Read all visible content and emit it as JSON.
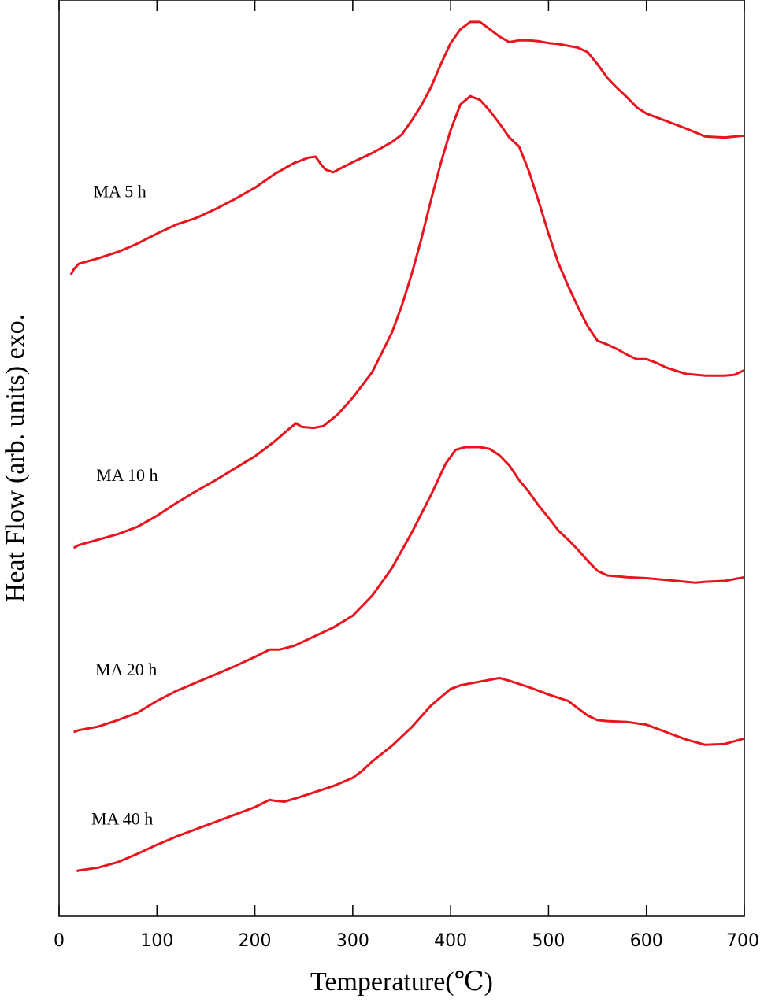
{
  "chart_data": {
    "type": "line",
    "xlabel": "Temperature(℃)",
    "ylabel": "Heat Flow (arb. units) exo.",
    "xlim": [
      0,
      700
    ],
    "ylim": [
      0,
      100
    ],
    "x_ticks": [
      0,
      100,
      200,
      300,
      400,
      500,
      600,
      700
    ],
    "y_tick_labels": false,
    "grid": false,
    "legend": "none",
    "line_color": "#e8141e",
    "series": [
      {
        "name": "MA 5 h",
        "points": [
          [
            12,
            70.0
          ],
          [
            15,
            70.6
          ],
          [
            20,
            71.2
          ],
          [
            40,
            71.8
          ],
          [
            60,
            72.5
          ],
          [
            80,
            73.4
          ],
          [
            100,
            74.5
          ],
          [
            120,
            75.5
          ],
          [
            140,
            76.2
          ],
          [
            160,
            77.2
          ],
          [
            180,
            78.3
          ],
          [
            200,
            79.5
          ],
          [
            220,
            81.0
          ],
          [
            240,
            82.2
          ],
          [
            255,
            82.8
          ],
          [
            262,
            82.9
          ],
          [
            268,
            82.0
          ],
          [
            272,
            81.5
          ],
          [
            280,
            81.2
          ],
          [
            300,
            82.3
          ],
          [
            320,
            83.3
          ],
          [
            340,
            84.5
          ],
          [
            350,
            85.3
          ],
          [
            360,
            86.8
          ],
          [
            370,
            88.5
          ],
          [
            380,
            90.5
          ],
          [
            390,
            93.0
          ],
          [
            400,
            95.3
          ],
          [
            410,
            96.8
          ],
          [
            420,
            97.6
          ],
          [
            430,
            97.6
          ],
          [
            440,
            96.8
          ],
          [
            450,
            96.0
          ],
          [
            460,
            95.4
          ],
          [
            470,
            95.6
          ],
          [
            480,
            95.6
          ],
          [
            490,
            95.5
          ],
          [
            500,
            95.3
          ],
          [
            510,
            95.2
          ],
          [
            520,
            95.0
          ],
          [
            530,
            94.8
          ],
          [
            540,
            94.3
          ],
          [
            550,
            93.0
          ],
          [
            560,
            91.5
          ],
          [
            570,
            90.4
          ],
          [
            580,
            89.4
          ],
          [
            590,
            88.3
          ],
          [
            600,
            87.6
          ],
          [
            620,
            86.8
          ],
          [
            640,
            86.0
          ],
          [
            660,
            85.1
          ],
          [
            680,
            85.0
          ],
          [
            700,
            85.2
          ]
        ]
      },
      {
        "name": "MA 10 h",
        "points": [
          [
            15,
            40.2
          ],
          [
            20,
            40.5
          ],
          [
            40,
            41.1
          ],
          [
            60,
            41.7
          ],
          [
            80,
            42.5
          ],
          [
            100,
            43.7
          ],
          [
            120,
            45.1
          ],
          [
            140,
            46.4
          ],
          [
            160,
            47.6
          ],
          [
            180,
            48.9
          ],
          [
            200,
            50.2
          ],
          [
            220,
            51.8
          ],
          [
            235,
            53.2
          ],
          [
            242,
            53.8
          ],
          [
            248,
            53.4
          ],
          [
            260,
            53.3
          ],
          [
            270,
            53.5
          ],
          [
            285,
            54.8
          ],
          [
            300,
            56.6
          ],
          [
            320,
            59.4
          ],
          [
            340,
            63.7
          ],
          [
            350,
            66.6
          ],
          [
            360,
            70.0
          ],
          [
            370,
            73.9
          ],
          [
            380,
            78.2
          ],
          [
            390,
            82.2
          ],
          [
            400,
            85.8
          ],
          [
            410,
            88.6
          ],
          [
            420,
            89.5
          ],
          [
            430,
            89.1
          ],
          [
            440,
            87.9
          ],
          [
            450,
            86.5
          ],
          [
            460,
            85.0
          ],
          [
            470,
            84.0
          ],
          [
            480,
            81.3
          ],
          [
            490,
            78.0
          ],
          [
            500,
            74.5
          ],
          [
            510,
            71.3
          ],
          [
            520,
            68.8
          ],
          [
            530,
            66.5
          ],
          [
            540,
            64.4
          ],
          [
            550,
            62.8
          ],
          [
            560,
            62.4
          ],
          [
            570,
            61.9
          ],
          [
            580,
            61.3
          ],
          [
            590,
            60.8
          ],
          [
            600,
            60.8
          ],
          [
            610,
            60.4
          ],
          [
            620,
            59.9
          ],
          [
            640,
            59.2
          ],
          [
            660,
            59.0
          ],
          [
            680,
            59.0
          ],
          [
            690,
            59.1
          ],
          [
            700,
            59.6
          ]
        ]
      },
      {
        "name": "MA 20 h",
        "points": [
          [
            15,
            20.1
          ],
          [
            20,
            20.3
          ],
          [
            40,
            20.7
          ],
          [
            60,
            21.4
          ],
          [
            80,
            22.2
          ],
          [
            100,
            23.5
          ],
          [
            120,
            24.6
          ],
          [
            140,
            25.5
          ],
          [
            160,
            26.4
          ],
          [
            180,
            27.3
          ],
          [
            200,
            28.3
          ],
          [
            215,
            29.1
          ],
          [
            225,
            29.1
          ],
          [
            240,
            29.5
          ],
          [
            260,
            30.5
          ],
          [
            280,
            31.5
          ],
          [
            300,
            32.8
          ],
          [
            320,
            35.0
          ],
          [
            340,
            38.0
          ],
          [
            360,
            41.8
          ],
          [
            380,
            46.0
          ],
          [
            395,
            49.4
          ],
          [
            405,
            50.9
          ],
          [
            415,
            51.2
          ],
          [
            430,
            51.2
          ],
          [
            440,
            51.0
          ],
          [
            450,
            50.3
          ],
          [
            460,
            49.2
          ],
          [
            470,
            47.6
          ],
          [
            480,
            46.3
          ],
          [
            490,
            44.8
          ],
          [
            500,
            43.5
          ],
          [
            510,
            42.1
          ],
          [
            520,
            41.1
          ],
          [
            530,
            40.0
          ],
          [
            540,
            38.8
          ],
          [
            550,
            37.7
          ],
          [
            560,
            37.2
          ],
          [
            580,
            37.0
          ],
          [
            600,
            36.9
          ],
          [
            620,
            36.7
          ],
          [
            640,
            36.5
          ],
          [
            650,
            36.4
          ],
          [
            660,
            36.5
          ],
          [
            680,
            36.6
          ],
          [
            700,
            37.0
          ]
        ]
      },
      {
        "name": "MA 40 h",
        "points": [
          [
            18,
            4.9
          ],
          [
            20,
            5.0
          ],
          [
            40,
            5.3
          ],
          [
            60,
            5.9
          ],
          [
            80,
            6.8
          ],
          [
            100,
            7.8
          ],
          [
            120,
            8.7
          ],
          [
            140,
            9.5
          ],
          [
            160,
            10.3
          ],
          [
            180,
            11.1
          ],
          [
            200,
            11.9
          ],
          [
            215,
            12.7
          ],
          [
            220,
            12.6
          ],
          [
            230,
            12.5
          ],
          [
            240,
            12.8
          ],
          [
            260,
            13.5
          ],
          [
            280,
            14.2
          ],
          [
            300,
            15.1
          ],
          [
            310,
            15.9
          ],
          [
            320,
            16.9
          ],
          [
            340,
            18.6
          ],
          [
            360,
            20.6
          ],
          [
            380,
            23.0
          ],
          [
            400,
            24.8
          ],
          [
            410,
            25.2
          ],
          [
            420,
            25.4
          ],
          [
            440,
            25.8
          ],
          [
            450,
            26.0
          ],
          [
            460,
            25.7
          ],
          [
            480,
            25.0
          ],
          [
            500,
            24.2
          ],
          [
            520,
            23.5
          ],
          [
            530,
            22.7
          ],
          [
            540,
            21.9
          ],
          [
            550,
            21.4
          ],
          [
            560,
            21.3
          ],
          [
            580,
            21.2
          ],
          [
            600,
            20.9
          ],
          [
            620,
            20.1
          ],
          [
            640,
            19.3
          ],
          [
            660,
            18.7
          ],
          [
            680,
            18.8
          ],
          [
            700,
            19.4
          ]
        ]
      }
    ],
    "series_label_positions": [
      {
        "name": "MA 5 h",
        "x": 35,
        "y": 78.5
      },
      {
        "name": "MA 10 h",
        "x": 38,
        "y": 47.5
      },
      {
        "name": "MA 20 h",
        "x": 37,
        "y": 26.3
      },
      {
        "name": "MA 40 h",
        "x": 33,
        "y": 10.0
      }
    ]
  }
}
